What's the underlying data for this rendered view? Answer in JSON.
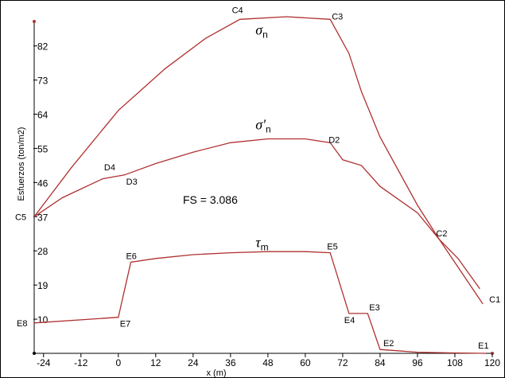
{
  "chart_data": {
    "type": "line",
    "xlabel": "x (m)",
    "ylabel": "Esfuerzos (ton/m2)",
    "xlim": [
      -27,
      120
    ],
    "ylim": [
      1,
      92
    ],
    "x_ticks": [
      -24,
      -12,
      0,
      12,
      24,
      36,
      48,
      60,
      72,
      84,
      96,
      108,
      120
    ],
    "y_ticks": [
      10,
      19,
      28,
      37,
      46,
      55,
      64,
      73,
      82
    ],
    "annotation": "FS = 3.086",
    "line_color": "#b03030",
    "series": [
      {
        "name": "σn",
        "symbol": "σ",
        "subscript": "n",
        "label_at": [
          44,
          85
        ],
        "points": [
          [
            -27,
            37
          ],
          [
            -15,
            50
          ],
          [
            0,
            65
          ],
          [
            15,
            76
          ],
          [
            28,
            84
          ],
          [
            39,
            89
          ],
          [
            54,
            89.7
          ],
          [
            68,
            89
          ],
          [
            74,
            80
          ],
          [
            78,
            70
          ],
          [
            84,
            58
          ],
          [
            96,
            40
          ],
          [
            103,
            31
          ],
          [
            117,
            14
          ]
        ]
      },
      {
        "name": "σ'n",
        "symbol": "σ'",
        "subscript": "n",
        "label_at": [
          44,
          60
        ],
        "points": [
          [
            -27,
            37
          ],
          [
            -18,
            42
          ],
          [
            -5,
            47
          ],
          [
            2,
            48
          ],
          [
            12,
            51
          ],
          [
            24,
            54
          ],
          [
            36,
            56.5
          ],
          [
            48,
            57.5
          ],
          [
            60,
            57.5
          ],
          [
            68,
            56.5
          ],
          [
            72,
            52
          ],
          [
            78,
            50.5
          ],
          [
            84,
            45
          ],
          [
            96,
            38
          ],
          [
            103,
            31
          ],
          [
            109,
            26
          ],
          [
            116,
            18
          ]
        ]
      },
      {
        "name": "τm",
        "symbol": "τ",
        "subscript": "m",
        "label_at": [
          44,
          29
        ],
        "points": [
          [
            -27,
            9
          ],
          [
            0,
            10.5
          ],
          [
            4,
            25
          ],
          [
            12,
            26
          ],
          [
            24,
            27
          ],
          [
            36,
            27.5
          ],
          [
            48,
            27.8
          ],
          [
            60,
            27.8
          ],
          [
            68,
            27.5
          ],
          [
            74,
            11.5
          ],
          [
            80,
            11.5
          ],
          [
            84,
            2
          ],
          [
            96,
            1.3
          ],
          [
            108,
            1.1
          ],
          [
            118,
            1
          ]
        ]
      }
    ],
    "point_labels": [
      {
        "text": "C1",
        "x": 118,
        "y": 14
      },
      {
        "text": "C2",
        "x": 103,
        "y": 31
      },
      {
        "text": "C3",
        "x": 68,
        "y": 89
      },
      {
        "text": "C4",
        "x": 39,
        "y": 89
      },
      {
        "text": "C5",
        "x": -27,
        "y": 37
      },
      {
        "text": "D2",
        "x": 68,
        "y": 56.5
      },
      {
        "text": "D3",
        "x": 2,
        "y": 48
      },
      {
        "text": "D4",
        "x": -1,
        "y": 48
      },
      {
        "text": "E1",
        "x": 118,
        "y": 1
      },
      {
        "text": "E2",
        "x": 84,
        "y": 2
      },
      {
        "text": "E3",
        "x": 80,
        "y": 11.5
      },
      {
        "text": "E4",
        "x": 74,
        "y": 11.5
      },
      {
        "text": "E5",
        "x": 68,
        "y": 27.5
      },
      {
        "text": "E6",
        "x": 4,
        "y": 25
      },
      {
        "text": "E7",
        "x": 0,
        "y": 10.5
      },
      {
        "text": "E8",
        "x": -27,
        "y": 9
      }
    ]
  }
}
